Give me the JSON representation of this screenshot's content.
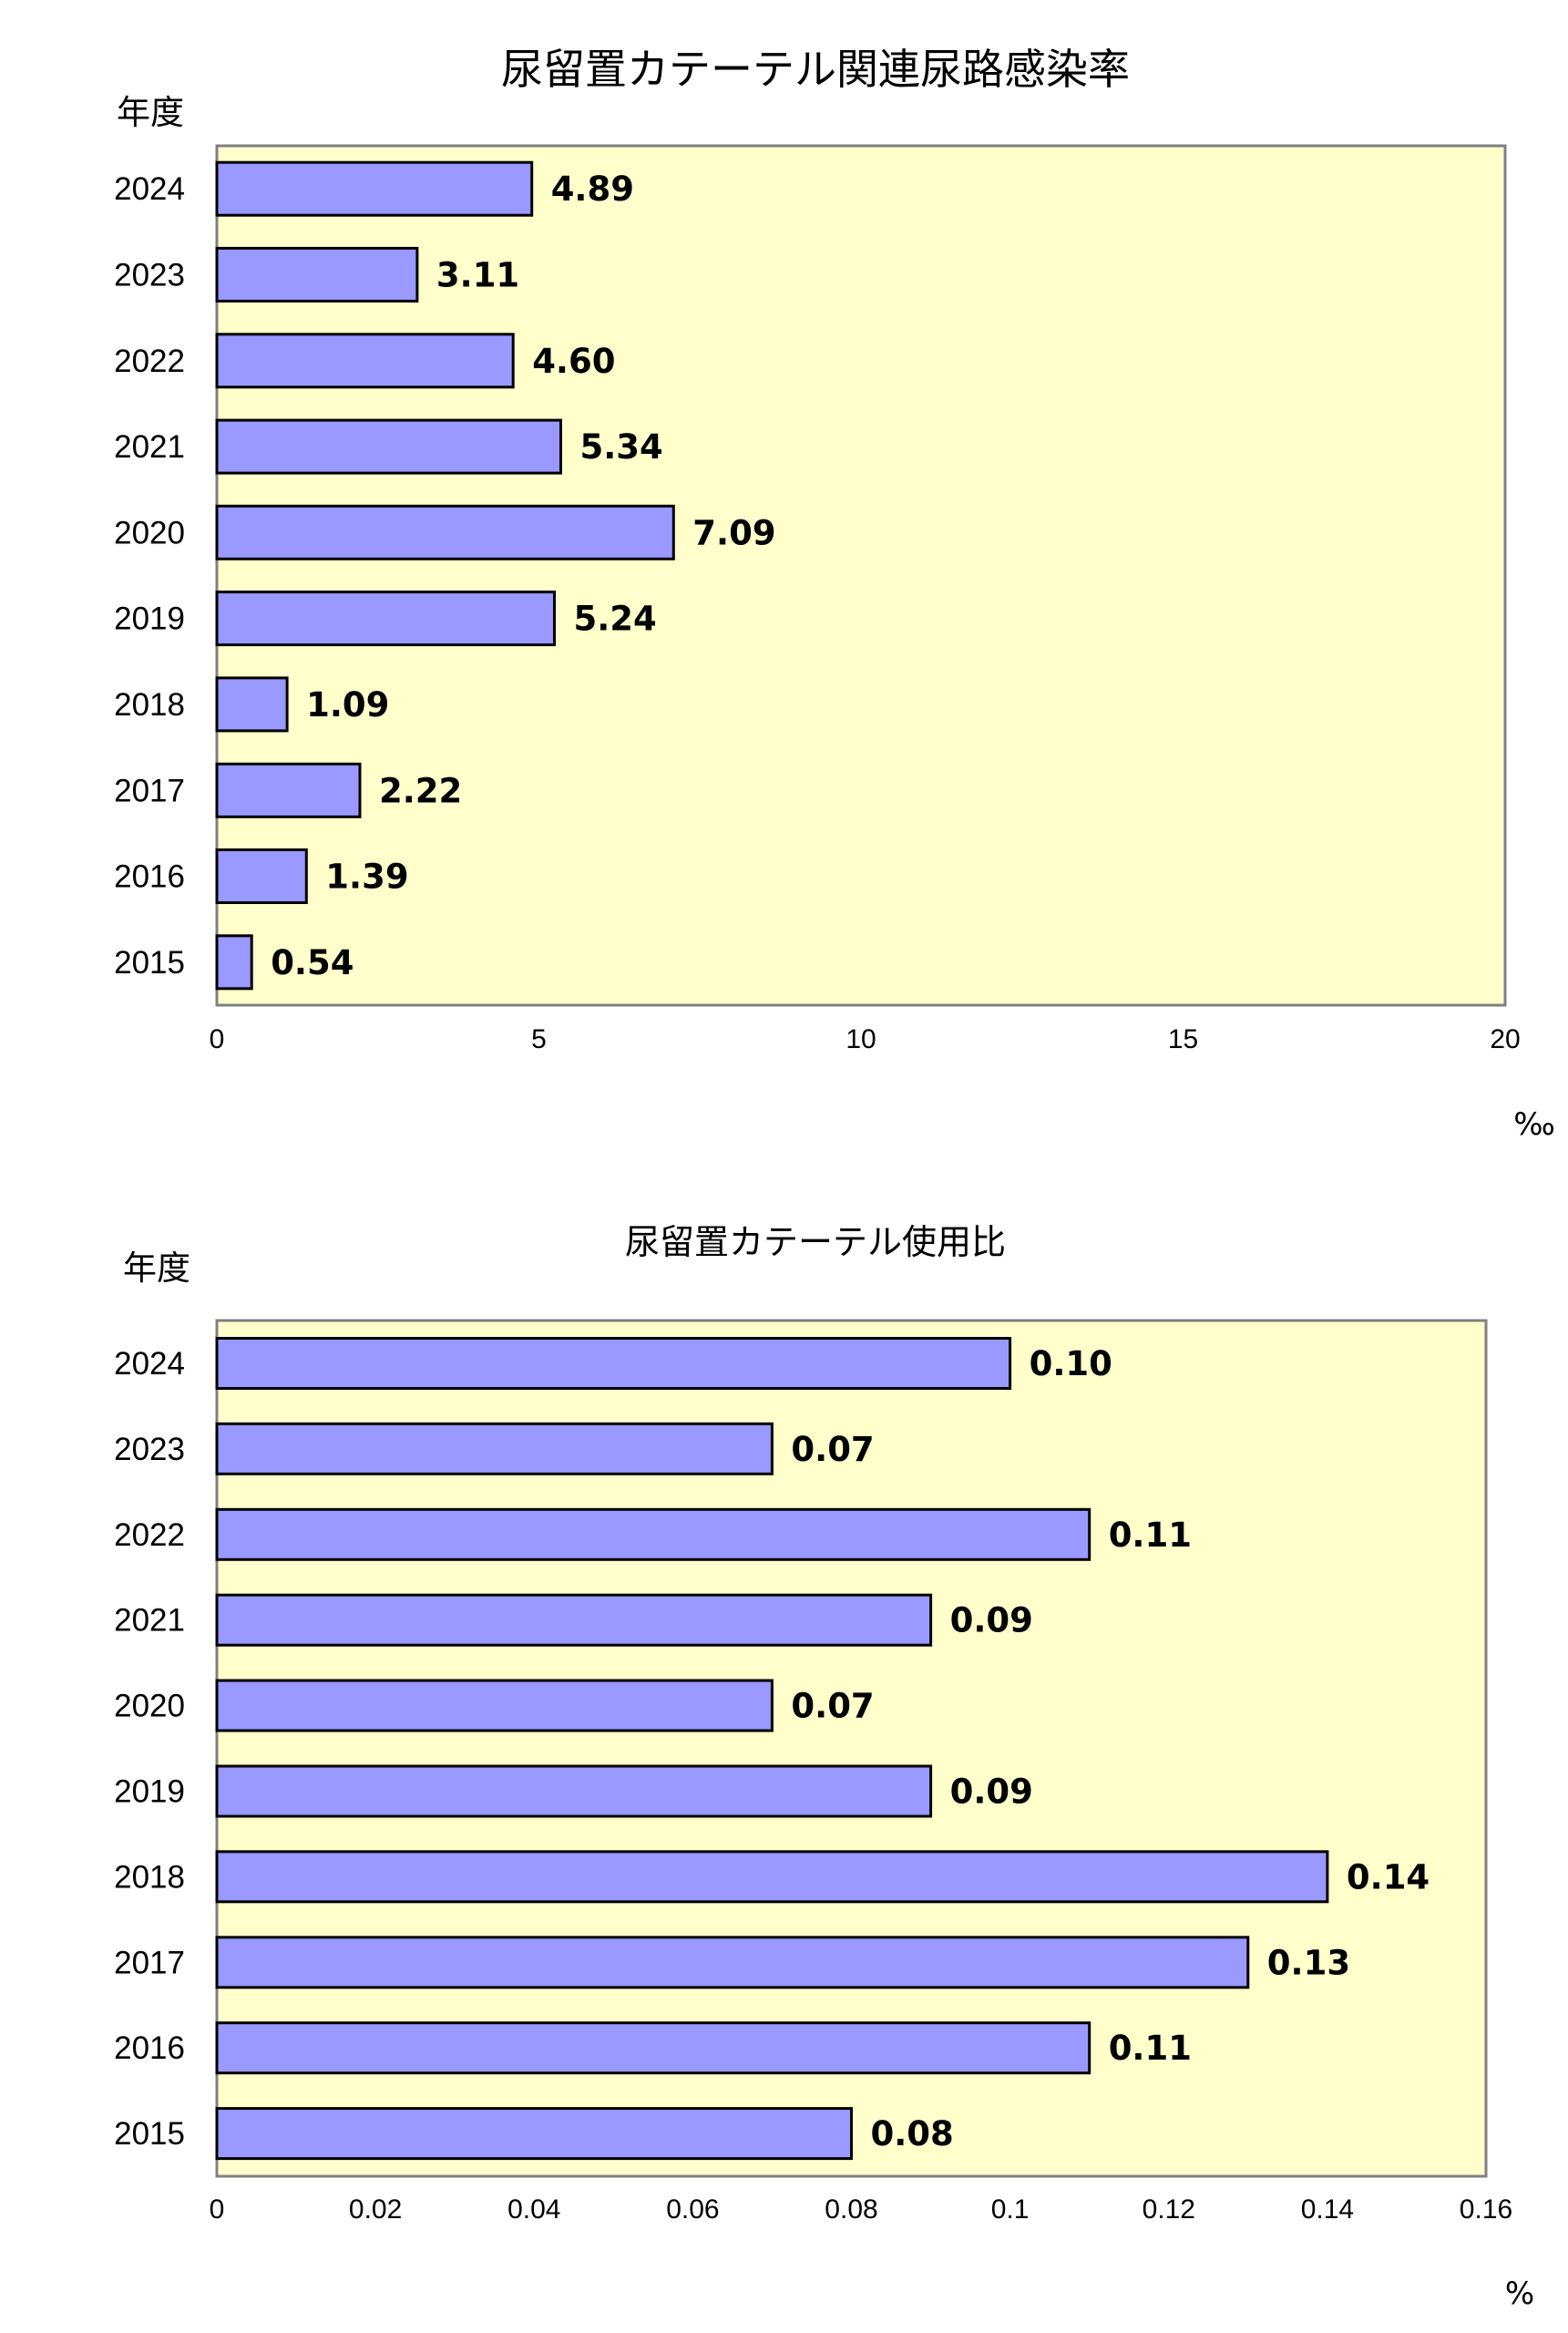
{
  "colors": {
    "plot_background": "#FFFFCC",
    "bar_fill": "#9999FF",
    "bar_stroke": "#000000",
    "frame_stroke": "#808080",
    "text": "#000000"
  },
  "chart_data": [
    {
      "type": "bar",
      "orientation": "horizontal",
      "title": "尿留置カテーテル関連尿路感染率",
      "category_axis_label": "年度",
      "unit": "‰",
      "categories": [
        "2024",
        "2023",
        "2022",
        "2021",
        "2020",
        "2019",
        "2018",
        "2017",
        "2016",
        "2015"
      ],
      "values": [
        4.89,
        3.11,
        4.6,
        5.34,
        7.09,
        5.24,
        1.09,
        2.22,
        1.39,
        0.54
      ],
      "value_labels": [
        "4.89",
        "3.11",
        "4.60",
        "5.34",
        "7.09",
        "5.24",
        "1.09",
        "2.22",
        "1.39",
        "0.54"
      ],
      "xlim": [
        0,
        20
      ],
      "ticks": [
        0,
        5,
        10,
        15,
        20
      ],
      "tick_labels": [
        "0",
        "5",
        "10",
        "15",
        "20"
      ],
      "grid": false,
      "legend": "none"
    },
    {
      "type": "bar",
      "orientation": "horizontal",
      "title": "尿留置カテーテル使用比",
      "category_axis_label": "年度",
      "unit": "%",
      "categories": [
        "2024",
        "2023",
        "2022",
        "2021",
        "2020",
        "2019",
        "2018",
        "2017",
        "2016",
        "2015"
      ],
      "values": [
        0.1,
        0.07,
        0.11,
        0.09,
        0.07,
        0.09,
        0.14,
        0.13,
        0.11,
        0.08
      ],
      "value_labels": [
        "0.10",
        "0.07",
        "0.11",
        "0.09",
        "0.07",
        "0.09",
        "0.14",
        "0.13",
        "0.11",
        "0.08"
      ],
      "xlim": [
        0,
        0.16
      ],
      "ticks": [
        0,
        0.02,
        0.04,
        0.06,
        0.08,
        0.1,
        0.12,
        0.14,
        0.16
      ],
      "tick_labels": [
        "0",
        "0.02",
        "0.04",
        "0.06",
        "0.08",
        "0.1",
        "0.12",
        "0.14",
        "0.16"
      ],
      "grid": false,
      "legend": "none"
    }
  ]
}
